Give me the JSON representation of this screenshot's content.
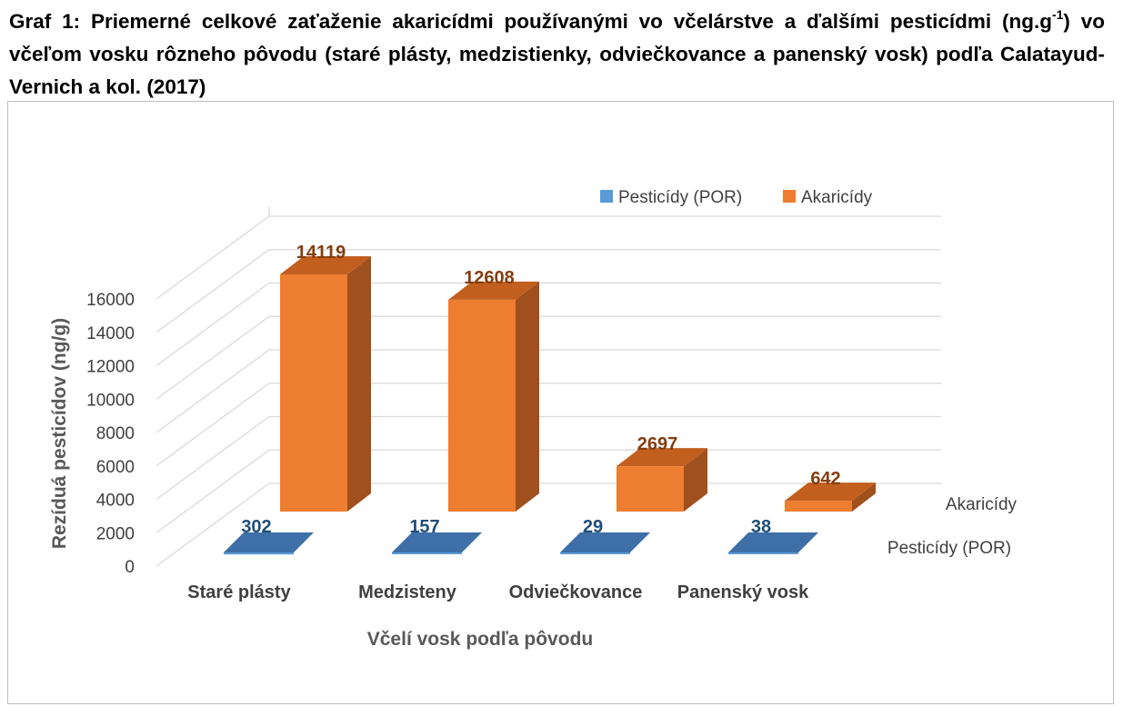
{
  "caption": {
    "part1": "Graf 1: Priemerné celkové zaťaženie akaricídmi používanými vo včelárstve a ďalšími pesticídmi (ng.g",
    "sup": "-1",
    "part2": ") vo včeľom vosku rôzneho pôvodu (staré plásty, medzistienky, odviečkovance a panenský vosk) podľa Calatayud-Vernich a kol. (2017)"
  },
  "colors": {
    "akaricidy_front": "#ed7d31",
    "akaricidy_side": "#a0501c",
    "akaricidy_top": "#c25f1e",
    "pesticidy_front": "#5b9bd5",
    "pesticidy_top": "#3e6fa6",
    "gridline": "#d9d9d9",
    "ak_label": "#843c0c",
    "pes_label": "#1f4e79"
  },
  "chart_data": {
    "type": "bar",
    "subtype": "3d-clustered-column",
    "categories": [
      "Staré plásty",
      "Medzisteny",
      "Odviečkovance",
      "Panenský vosk"
    ],
    "series": [
      {
        "name": "Pesticídy (POR)",
        "values": [
          302,
          157,
          29,
          38
        ],
        "color_key": "pesticidy_front"
      },
      {
        "name": "Akaricídy",
        "values": [
          14119,
          12608,
          2697,
          642
        ],
        "color_key": "akaricidy_front"
      }
    ],
    "xlabel": "Včelí vosk podľa pôvodu",
    "ylabel": "Rezíduá pesticídov (ng/g)",
    "ylim": [
      0,
      16000
    ],
    "yticks": [
      "0",
      "2000",
      "4000",
      "6000",
      "8000",
      "10000",
      "12000",
      "14000",
      "16000"
    ],
    "series_axis_labels": [
      "Akaricídy",
      "Pesticídy (POR)"
    ],
    "legend": {
      "position": "top-right",
      "entries": [
        "Pesticídy (POR)",
        "Akaricídy"
      ]
    },
    "grid": true
  }
}
